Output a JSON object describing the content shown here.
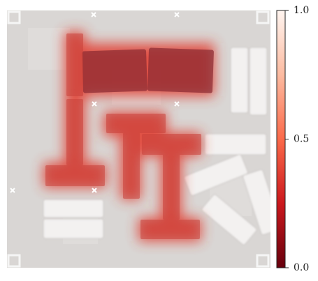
{
  "chart_data": {
    "type": "heatmap",
    "colorbar": {
      "lim": [
        0,
        1
      ],
      "ticks": [
        {
          "value": 0,
          "label": "0.0"
        },
        0.5,
        {
          "value": 1,
          "label": "1.0"
        }
      ],
      "colors": [
        "#67000d",
        "#cb181d",
        "#fb6a4a",
        "#fcbba1",
        "#fff5f0"
      ]
    }
  }
}
